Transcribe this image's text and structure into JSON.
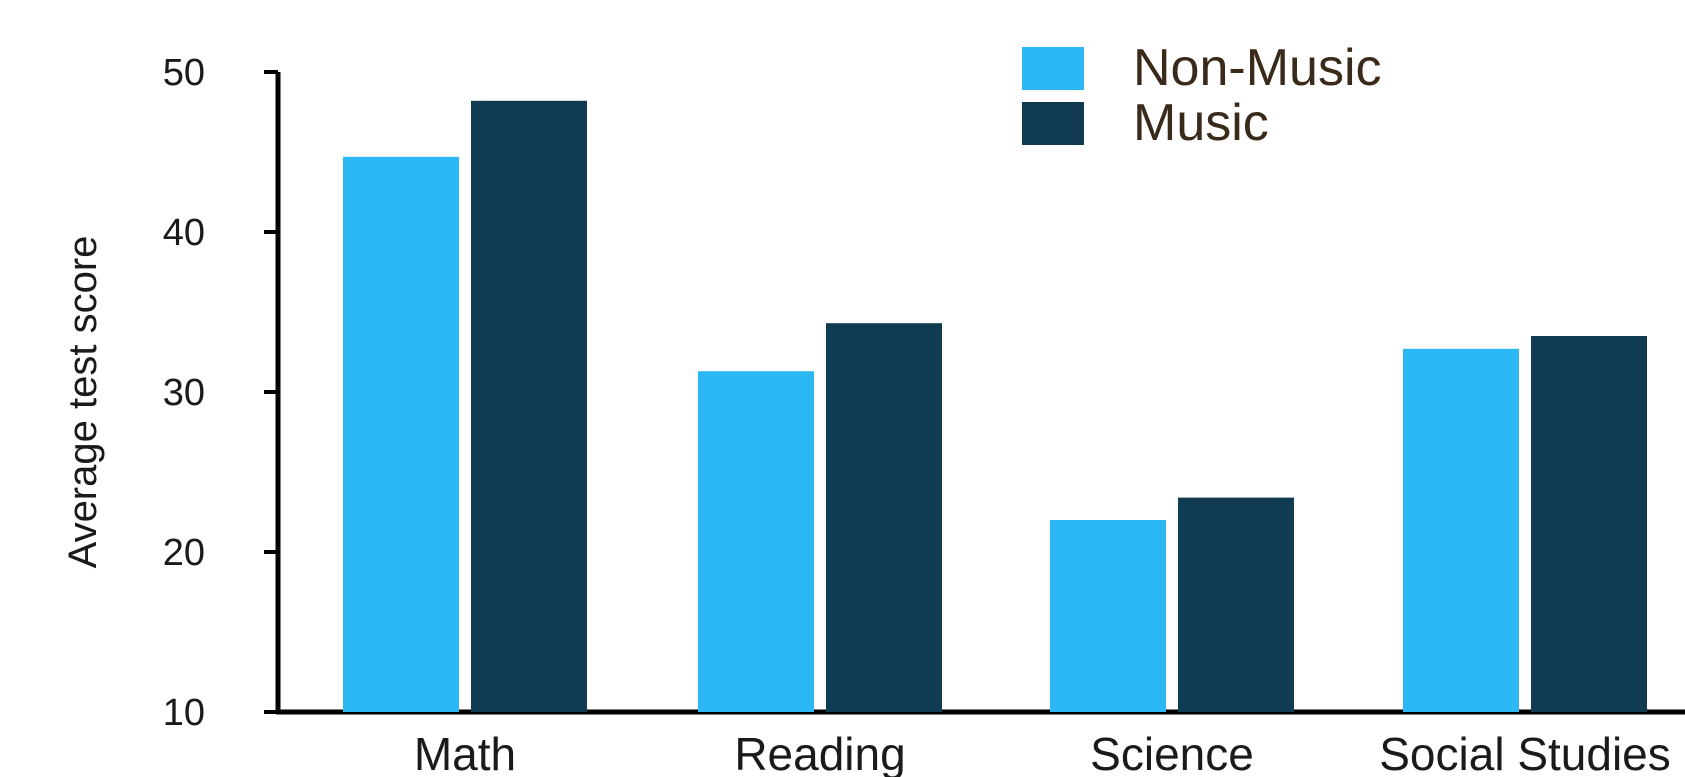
{
  "chart_data": {
    "type": "bar",
    "title": "",
    "xlabel": "",
    "ylabel": "Average test score",
    "ylim": [
      10,
      50
    ],
    "yticks": [
      10,
      20,
      30,
      40,
      50
    ],
    "categories": [
      "Math",
      "Reading",
      "Science",
      "Social Studies"
    ],
    "series": [
      {
        "name": "Non-Music",
        "color": "#2bb8f4",
        "values": [
          44.7,
          31.3,
          22.0,
          32.7
        ]
      },
      {
        "name": "Music",
        "color": "#113b50",
        "values": [
          48.2,
          34.3,
          23.4,
          33.5
        ]
      }
    ],
    "legend": {
      "position": "top-right"
    },
    "grid": false
  }
}
